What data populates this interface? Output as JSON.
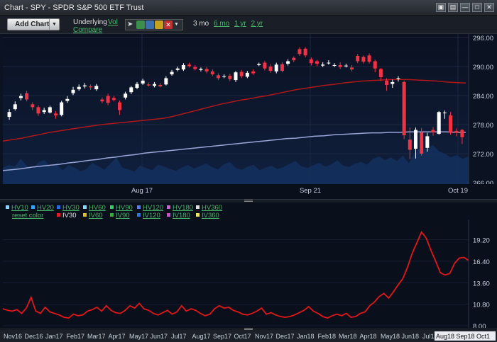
{
  "window": {
    "title": "Chart - SPY - SPDR S&P 500 ETF Trust"
  },
  "titlebar_icons": [
    "camera-icon",
    "print-icon",
    "minimize-icon",
    "maximize-icon",
    "close-icon"
  ],
  "toolbar": {
    "add_chart": "Add Chart",
    "underlying": "Underlying",
    "vol": "Vol",
    "compare": "Compare",
    "tools": [
      "cursor-icon",
      "refresh-icon",
      "draw-line-icon",
      "color-icon",
      "delete-icon",
      "dropdown-icon"
    ],
    "range_label": "3 mo",
    "ranges": [
      "6 mo",
      "1 yr",
      "2 yr"
    ]
  },
  "price_chart": {
    "y_ticks": [
      "296.00",
      "290.00",
      "284.00",
      "278.00",
      "272.00",
      "266.00"
    ],
    "x_ticks": [
      "Aug 17",
      "Sep 21",
      "Oct 19"
    ]
  },
  "legend": {
    "row1": [
      {
        "label": "HV10",
        "color": "#8fd0ff"
      },
      {
        "label": "HV20",
        "color": "#3aa0ff"
      },
      {
        "label": "HV30",
        "color": "#2a6fd6"
      },
      {
        "label": "HV60",
        "color": "#7fe0ff"
      },
      {
        "label": "HV90",
        "color": "#33cc66"
      },
      {
        "label": "HV120",
        "color": "#5c7cff"
      },
      {
        "label": "HV180",
        "color": "#d060d0"
      },
      {
        "label": "HV360",
        "color": "#e0e0e0"
      }
    ],
    "reset": "reset color",
    "row2": [
      {
        "label": "IV30",
        "color": "#e02020",
        "active": true
      },
      {
        "label": "IV60",
        "color": "#e0c020"
      },
      {
        "label": "IV90",
        "color": "#30b030"
      },
      {
        "label": "IV120",
        "color": "#3070e0"
      },
      {
        "label": "IV180",
        "color": "#d050d0"
      },
      {
        "label": "IV360",
        "color": "#f0e060"
      }
    ]
  },
  "vol_chart": {
    "y_ticks": [
      "19.20",
      "16.40",
      "13.60",
      "10.80",
      "8.00"
    ],
    "x_ticks": [
      "Nov16",
      "Dec16",
      "Jan17",
      "Feb17",
      "Mar17",
      "Apr17",
      "May17",
      "Jun17",
      "Jul17",
      "Aug17",
      "Sep17",
      "Oct17",
      "Nov17",
      "Dec17",
      "Jan18",
      "Feb18",
      "Mar18",
      "Apr18",
      "May18",
      "Jun18",
      "Jul18"
    ],
    "x_ticks_highlight": "Aug18 Sep18 Oct1"
  },
  "chart_data": [
    {
      "type": "candlestick",
      "title": "SPY",
      "ylim": [
        266,
        296
      ],
      "y_ticks": [
        296,
        290,
        284,
        278,
        272,
        266
      ],
      "x_ticks": [
        "Aug 17",
        "Sep 21",
        "Oct 19"
      ],
      "candles": [
        {
          "o": 279.6,
          "c": 280.6,
          "h": 281.2,
          "l": 279.0
        },
        {
          "o": 281.2,
          "c": 282.2,
          "h": 282.8,
          "l": 280.9
        },
        {
          "o": 283.5,
          "c": 283.9,
          "h": 284.4,
          "l": 283.0
        },
        {
          "o": 284.5,
          "c": 283.2,
          "h": 285.0,
          "l": 282.8
        },
        {
          "o": 282.2,
          "c": 281.6,
          "h": 282.6,
          "l": 281.0
        },
        {
          "o": 281.6,
          "c": 280.3,
          "h": 282.0,
          "l": 279.8
        },
        {
          "o": 280.6,
          "c": 281.0,
          "h": 281.5,
          "l": 280.2
        },
        {
          "o": 280.5,
          "c": 281.6,
          "h": 281.9,
          "l": 280.3
        },
        {
          "o": 280.3,
          "c": 279.9,
          "h": 280.8,
          "l": 279.2
        },
        {
          "o": 280.0,
          "c": 282.6,
          "h": 282.9,
          "l": 279.7
        },
        {
          "o": 282.9,
          "c": 283.3,
          "h": 283.9,
          "l": 282.5
        },
        {
          "o": 284.5,
          "c": 285.2,
          "h": 285.8,
          "l": 284.1
        },
        {
          "o": 285.3,
          "c": 285.8,
          "h": 286.3,
          "l": 285.0
        },
        {
          "o": 285.9,
          "c": 286.1,
          "h": 286.6,
          "l": 285.5
        },
        {
          "o": 285.9,
          "c": 285.7,
          "h": 286.3,
          "l": 285.2
        },
        {
          "o": 285.3,
          "c": 286.0,
          "h": 286.4,
          "l": 285.0
        },
        {
          "o": 283.2,
          "c": 282.8,
          "h": 283.6,
          "l": 282.4
        },
        {
          "o": 283.9,
          "c": 282.5,
          "h": 284.4,
          "l": 282.0
        },
        {
          "o": 283.5,
          "c": 283.1,
          "h": 283.9,
          "l": 282.8
        },
        {
          "o": 282.6,
          "c": 281.0,
          "h": 283.0,
          "l": 280.0
        },
        {
          "o": 283.6,
          "c": 284.4,
          "h": 284.8,
          "l": 283.2
        },
        {
          "o": 284.7,
          "c": 285.7,
          "h": 286.0,
          "l": 284.3
        },
        {
          "o": 285.6,
          "c": 286.4,
          "h": 286.8,
          "l": 285.3
        },
        {
          "o": 286.5,
          "c": 287.1,
          "h": 287.5,
          "l": 286.2
        },
        {
          "o": 286.3,
          "c": 286.1,
          "h": 286.7,
          "l": 285.9
        },
        {
          "o": 286.0,
          "c": 286.4,
          "h": 286.8,
          "l": 285.7
        },
        {
          "o": 286.2,
          "c": 285.9,
          "h": 286.6,
          "l": 285.7
        },
        {
          "o": 286.3,
          "c": 287.6,
          "h": 288.0,
          "l": 286.1
        },
        {
          "o": 288.4,
          "c": 288.9,
          "h": 289.3,
          "l": 288.1
        },
        {
          "o": 289.3,
          "c": 289.6,
          "h": 290.0,
          "l": 289.0
        },
        {
          "o": 289.4,
          "c": 290.3,
          "h": 290.7,
          "l": 289.1
        },
        {
          "o": 290.4,
          "c": 290.1,
          "h": 290.8,
          "l": 289.8
        },
        {
          "o": 289.9,
          "c": 289.5,
          "h": 290.3,
          "l": 289.2
        },
        {
          "o": 289.3,
          "c": 289.5,
          "h": 289.8,
          "l": 289.0
        },
        {
          "o": 289.5,
          "c": 289.0,
          "h": 289.9,
          "l": 288.6
        },
        {
          "o": 289.0,
          "c": 288.4,
          "h": 289.4,
          "l": 288.0
        },
        {
          "o": 288.2,
          "c": 287.6,
          "h": 288.6,
          "l": 287.2
        },
        {
          "o": 287.9,
          "c": 288.0,
          "h": 288.4,
          "l": 287.6
        },
        {
          "o": 288.1,
          "c": 287.4,
          "h": 288.5,
          "l": 287.0
        },
        {
          "o": 287.2,
          "c": 288.8,
          "h": 289.1,
          "l": 286.8
        },
        {
          "o": 288.9,
          "c": 288.0,
          "h": 289.3,
          "l": 287.6
        },
        {
          "o": 287.9,
          "c": 288.7,
          "h": 289.1,
          "l": 287.6
        },
        {
          "o": 289.0,
          "c": 288.6,
          "h": 289.4,
          "l": 288.3
        },
        {
          "o": 290.3,
          "c": 290.5,
          "h": 290.8,
          "l": 290.1
        },
        {
          "o": 290.8,
          "c": 289.6,
          "h": 291.2,
          "l": 289.2
        },
        {
          "o": 290.0,
          "c": 289.1,
          "h": 290.5,
          "l": 288.7
        },
        {
          "o": 289.0,
          "c": 290.4,
          "h": 290.8,
          "l": 288.6
        },
        {
          "o": 290.5,
          "c": 289.1,
          "h": 290.9,
          "l": 288.8
        },
        {
          "o": 290.6,
          "c": 291.1,
          "h": 291.5,
          "l": 290.2
        },
        {
          "o": 291.8,
          "c": 291.3,
          "h": 292.1,
          "l": 290.9
        },
        {
          "o": 293.6,
          "c": 292.6,
          "h": 294.0,
          "l": 292.2
        },
        {
          "o": 293.7,
          "c": 292.3,
          "h": 294.0,
          "l": 291.9
        },
        {
          "o": 291.5,
          "c": 290.7,
          "h": 291.9,
          "l": 290.2
        },
        {
          "o": 291.1,
          "c": 290.6,
          "h": 291.4,
          "l": 290.1
        },
        {
          "o": 290.2,
          "c": 290.4,
          "h": 290.9,
          "l": 289.9
        },
        {
          "o": 290.8,
          "c": 290.8,
          "h": 291.3,
          "l": 290.4
        },
        {
          "o": 290.3,
          "c": 290.3,
          "h": 290.7,
          "l": 289.9
        },
        {
          "o": 290.3,
          "c": 289.9,
          "h": 290.9,
          "l": 289.5
        },
        {
          "o": 290.2,
          "c": 290.2,
          "h": 290.6,
          "l": 289.8
        },
        {
          "o": 289.8,
          "c": 289.4,
          "h": 290.3,
          "l": 289.0
        },
        {
          "o": 292.2,
          "c": 291.1,
          "h": 292.6,
          "l": 290.7
        },
        {
          "o": 292.0,
          "c": 291.0,
          "h": 292.3,
          "l": 290.6
        },
        {
          "o": 292.3,
          "c": 291.0,
          "h": 292.7,
          "l": 290.6
        },
        {
          "o": 291.1,
          "c": 289.6,
          "h": 291.4,
          "l": 288.8
        },
        {
          "o": 289.5,
          "c": 287.8,
          "h": 289.7,
          "l": 287.0
        },
        {
          "o": 287.1,
          "c": 286.2,
          "h": 287.6,
          "l": 285.0
        },
        {
          "o": 286.4,
          "c": 286.8,
          "h": 287.3,
          "l": 285.6
        },
        {
          "o": 287.6,
          "c": 287.6,
          "h": 288.0,
          "l": 286.9
        },
        {
          "o": 286.8,
          "c": 275.8,
          "h": 287.1,
          "l": 275.0
        },
        {
          "o": 274.9,
          "c": 272.8,
          "h": 277.4,
          "l": 270.9
        },
        {
          "o": 273.0,
          "c": 276.9,
          "h": 277.4,
          "l": 271.0
        },
        {
          "o": 276.4,
          "c": 272.0,
          "h": 277.3,
          "l": 271.6
        },
        {
          "o": 273.2,
          "c": 275.6,
          "h": 276.3,
          "l": 272.4
        },
        {
          "o": 276.9,
          "c": 276.4,
          "h": 277.5,
          "l": 275.7
        },
        {
          "o": 276.1,
          "c": 280.6,
          "h": 280.8,
          "l": 275.9
        },
        {
          "o": 280.4,
          "c": 280.5,
          "h": 280.9,
          "l": 279.2
        },
        {
          "o": 279.9,
          "c": 276.3,
          "h": 280.6,
          "l": 275.9
        },
        {
          "o": 276.7,
          "c": 276.3,
          "h": 277.2,
          "l": 275.6
        },
        {
          "o": 276.9,
          "c": 275.4,
          "h": 277.1,
          "l": 274.0
        }
      ],
      "series": [
        {
          "name": "MA red",
          "color": "#b01818",
          "values": [
            274.6,
            274.9,
            275.2,
            275.6,
            276.0,
            276.4,
            276.7,
            277.0,
            277.3,
            277.6,
            277.9,
            278.1,
            278.3,
            278.5,
            278.7,
            278.9,
            279.1,
            279.3,
            279.7,
            280.2,
            280.7,
            281.2,
            281.7,
            282.2,
            282.6,
            283.0,
            283.3,
            283.7,
            284.0,
            284.4,
            284.8,
            285.2,
            285.5,
            285.8,
            286.1,
            286.3,
            286.6,
            286.8,
            287.0,
            287.1,
            287.2,
            287.3,
            287.3,
            287.3,
            287.2,
            287.1,
            287.0,
            286.8,
            286.7,
            286.6
          ]
        },
        {
          "name": "MA blue",
          "color": "#9aa6d8",
          "values": [
            268.5,
            268.7,
            268.9,
            269.2,
            269.4,
            269.6,
            269.8,
            270.1,
            270.3,
            270.6,
            270.8,
            271.1,
            271.3,
            271.6,
            271.8,
            272.1,
            272.3,
            272.5,
            272.7,
            272.9,
            273.1,
            273.3,
            273.5,
            273.7,
            273.9,
            274.1,
            274.3,
            274.5,
            274.7,
            274.9,
            275.1,
            275.2,
            275.4,
            275.6,
            275.7,
            275.9,
            276.0,
            276.1,
            276.2,
            276.3,
            276.3,
            276.4,
            276.4,
            276.5,
            276.5,
            276.5,
            276.5,
            276.5,
            276.4,
            276.4
          ]
        }
      ],
      "volume": [
        0.35,
        0.42,
        0.38,
        0.55,
        0.4,
        0.33,
        0.48,
        0.52,
        0.37,
        0.45,
        0.3,
        0.41,
        0.36,
        0.28,
        0.33,
        0.46,
        0.39,
        0.31,
        0.44,
        0.58,
        0.36,
        0.32,
        0.27,
        0.4,
        0.35,
        0.3,
        0.42,
        0.38,
        0.33,
        0.29,
        0.36,
        0.41,
        0.34,
        0.39,
        0.45,
        0.37,
        0.32,
        0.43,
        0.48,
        0.35,
        0.31,
        0.38,
        0.42,
        0.3,
        0.36,
        0.4,
        0.33,
        0.37,
        0.44,
        0.5,
        0.39,
        0.35,
        0.41,
        0.46,
        0.38,
        0.43,
        0.52,
        0.4,
        0.37,
        0.45,
        0.48,
        0.42,
        0.55,
        0.6,
        0.52,
        0.58,
        0.5,
        0.62,
        0.45,
        0.7,
        0.78,
        0.75,
        0.85,
        0.72,
        0.66,
        0.58,
        0.63,
        0.55,
        0.6
      ]
    },
    {
      "type": "line",
      "title": "IV30",
      "ylim": [
        8.0,
        21.0
      ],
      "y_ticks": [
        19.2,
        16.4,
        13.6,
        10.8,
        8.0
      ],
      "series": [
        {
          "name": "IV30",
          "color": "#e01818",
          "values": [
            10.2,
            10.0,
            9.9,
            10.1,
            9.6,
            10.3,
            11.7,
            9.9,
            9.6,
            10.4,
            9.8,
            9.6,
            9.4,
            9.1,
            9.0,
            9.5,
            9.3,
            9.4,
            9.9,
            10.1,
            10.4,
            9.9,
            10.6,
            10.0,
            9.7,
            9.6,
            10.0,
            10.6,
            10.3,
            10.9,
            10.2,
            10.0,
            9.6,
            9.4,
            9.7,
            10.0,
            9.5,
            9.8,
            10.6,
            9.9,
            10.2,
            10.0,
            9.6,
            9.3,
            9.5,
            10.2,
            10.6,
            10.3,
            10.4,
            10.0,
            9.8,
            9.5,
            9.4,
            9.6,
            9.9,
            10.3,
            9.5,
            9.7,
            9.4,
            9.2,
            9.1,
            9.2,
            9.4,
            9.7,
            10.0,
            10.5,
            9.9,
            9.6,
            9.2,
            9.0,
            9.3,
            9.5,
            9.3,
            9.6,
            9.1,
            9.2,
            9.6,
            9.8,
            10.6,
            11.1,
            11.8,
            12.2,
            11.6,
            12.4,
            13.3,
            14.1,
            15.6,
            17.4,
            18.8,
            20.2,
            19.4,
            17.8,
            16.4,
            14.9,
            14.6,
            14.8,
            16.1,
            16.8,
            16.9,
            16.5
          ]
        }
      ]
    }
  ]
}
